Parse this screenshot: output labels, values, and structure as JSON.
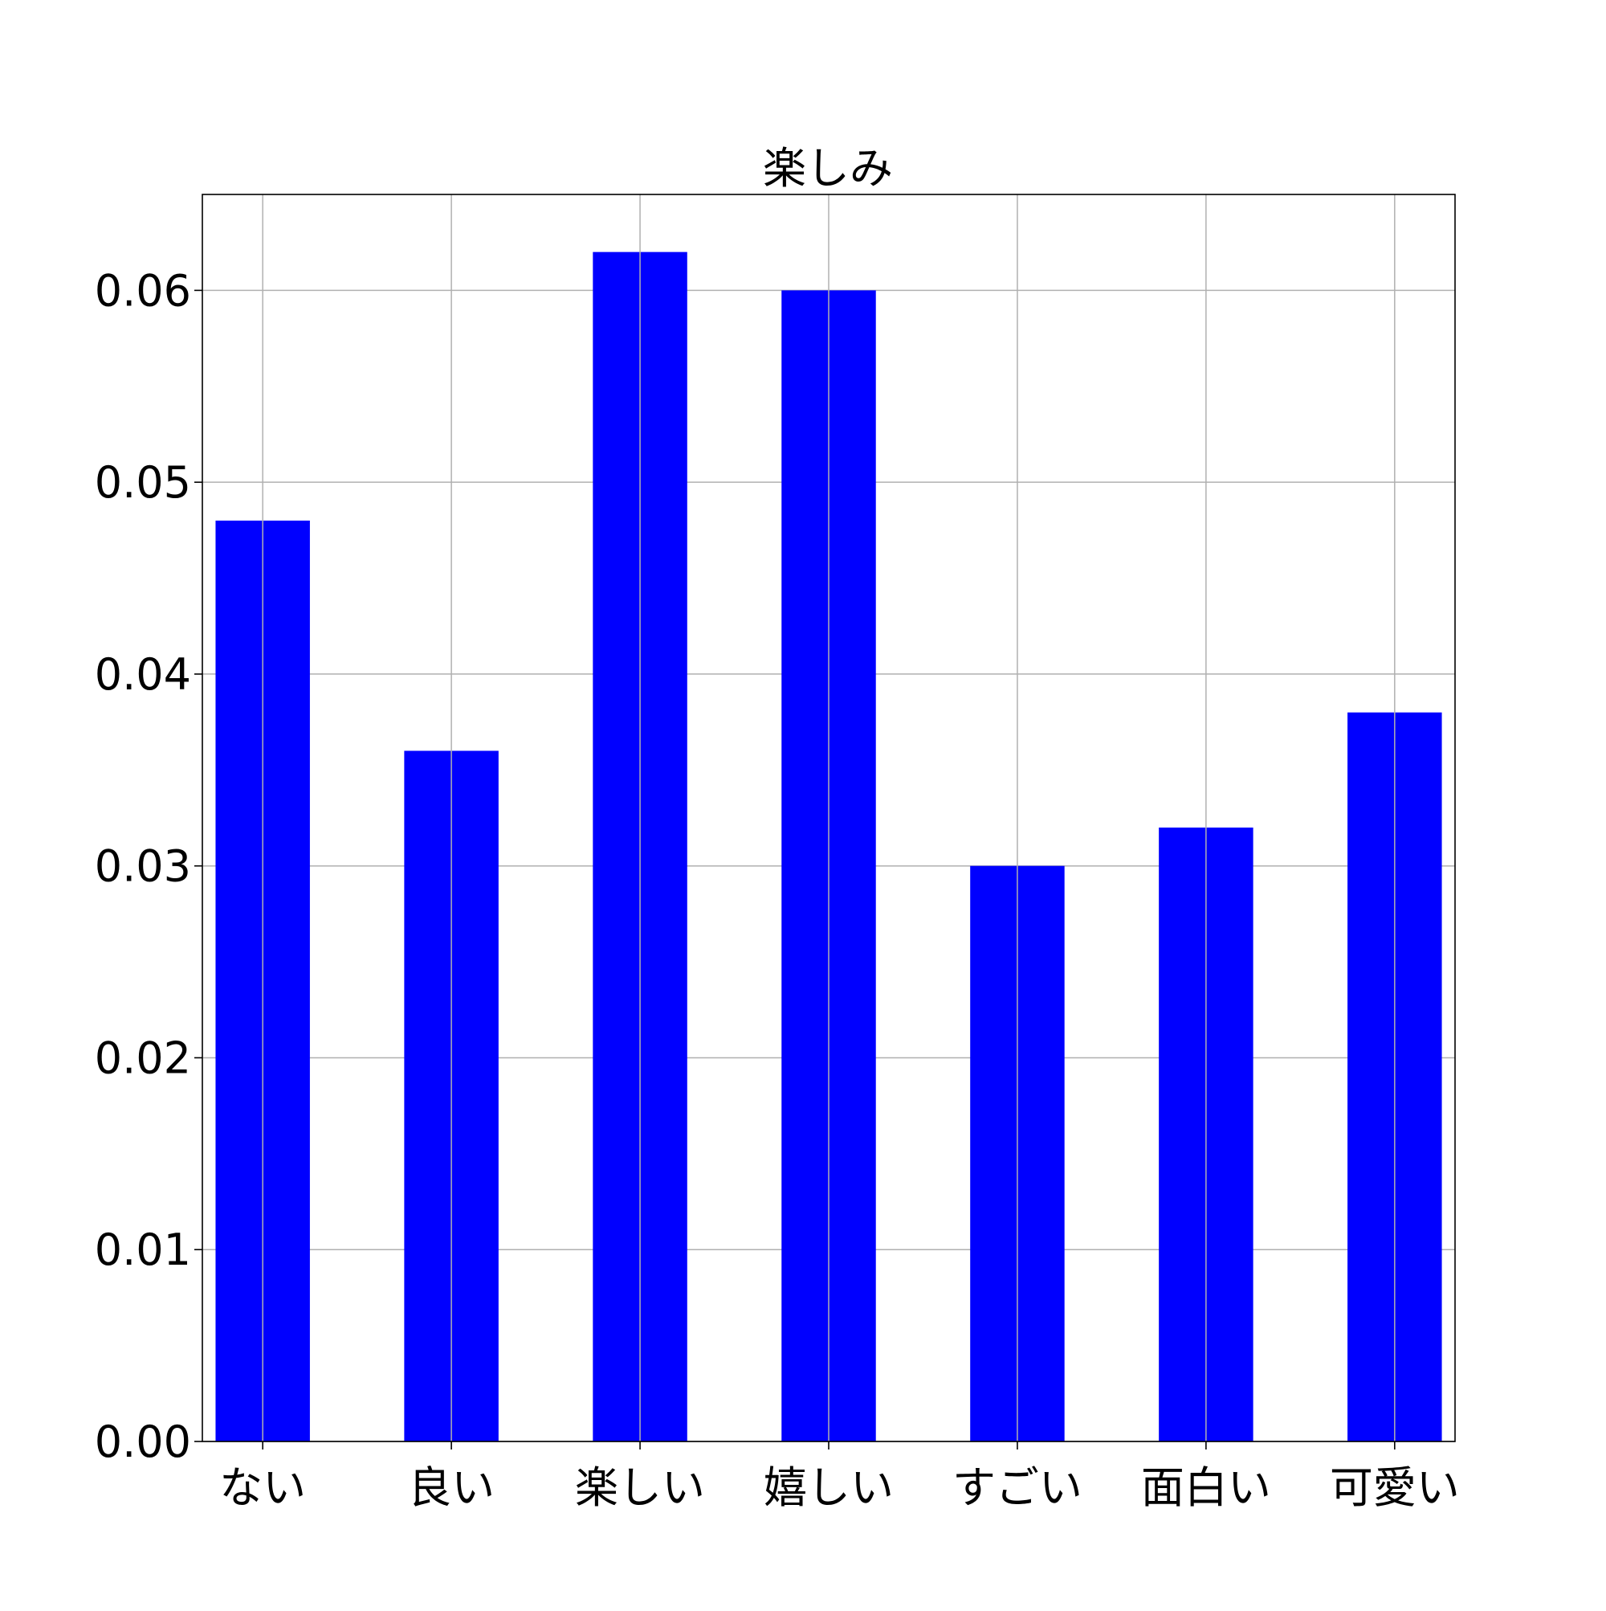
{
  "chart_data": {
    "type": "bar",
    "title": "楽しみ",
    "xlabel": "",
    "ylabel": "",
    "categories": [
      "ない",
      "良い",
      "楽しい",
      "嬉しい",
      "すごい",
      "面白い",
      "可愛い"
    ],
    "values": [
      0.048,
      0.036,
      0.062,
      0.06,
      0.03,
      0.032,
      0.038
    ],
    "ylim": [
      0,
      0.065
    ],
    "yticks": [
      "0.00",
      "0.01",
      "0.02",
      "0.03",
      "0.04",
      "0.05",
      "0.06"
    ],
    "grid": true,
    "bar_color": "#0000ff"
  }
}
